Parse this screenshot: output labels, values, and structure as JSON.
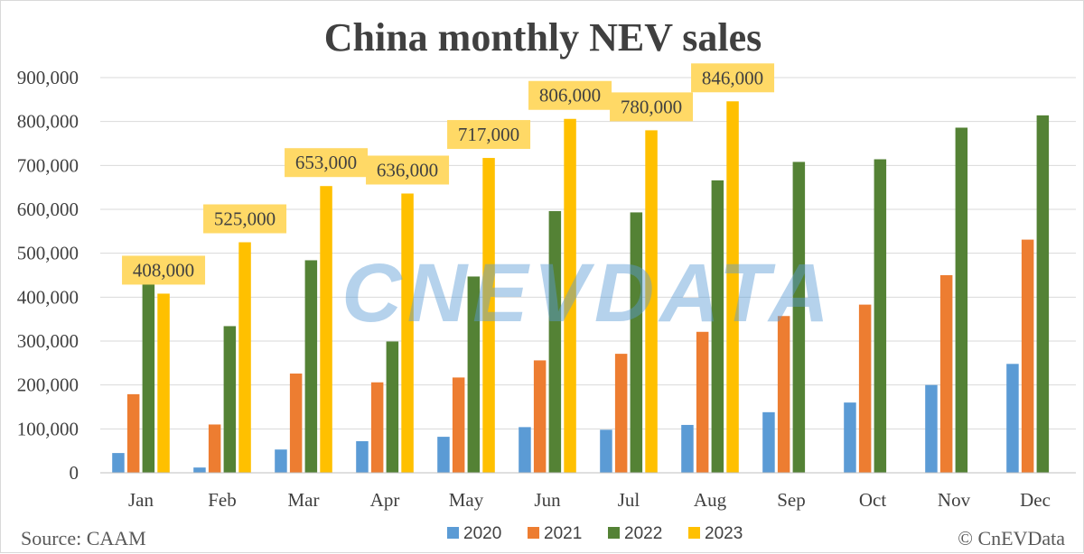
{
  "chart_data": {
    "type": "bar",
    "title": "China monthly NEV sales",
    "categories": [
      "Jan",
      "Feb",
      "Mar",
      "Apr",
      "May",
      "Jun",
      "Jul",
      "Aug",
      "Sep",
      "Oct",
      "Nov",
      "Dec"
    ],
    "series": [
      {
        "name": "2020",
        "color": "#5B9BD5",
        "values": [
          45000,
          12000,
          53000,
          72000,
          82000,
          104000,
          98000,
          109000,
          138000,
          160000,
          200000,
          248000
        ]
      },
      {
        "name": "2021",
        "color": "#ED7D31",
        "values": [
          179000,
          110000,
          226000,
          206000,
          217000,
          256000,
          271000,
          321000,
          357000,
          383000,
          450000,
          531000
        ]
      },
      {
        "name": "2022",
        "color": "#548235",
        "values": [
          431000,
          334000,
          484000,
          299000,
          447000,
          596000,
          593000,
          666000,
          708000,
          714000,
          786000,
          814000
        ]
      },
      {
        "name": "2023",
        "color": "#FFC000",
        "values": [
          408000,
          525000,
          653000,
          636000,
          717000,
          806000,
          780000,
          846000,
          null,
          null,
          null,
          null
        ]
      }
    ],
    "data_labels": [
      "408,000",
      "525,000",
      "653,000",
      "636,000",
      "717,000",
      "806,000",
      "780,000",
      "846,000"
    ],
    "data_label_background": "#FFD966",
    "y_ticks": [
      "0",
      "100,000",
      "200,000",
      "300,000",
      "400,000",
      "500,000",
      "600,000",
      "700,000",
      "800,000",
      "900,000"
    ],
    "ylim": [
      0,
      900000
    ],
    "grid": true,
    "legend_position": "bottom",
    "xlabel": "",
    "ylabel": "",
    "source": "Source: CAAM",
    "credit": "© CnEVData",
    "watermark": "CNEVDATA",
    "watermark_color": "#5B9BD5"
  }
}
